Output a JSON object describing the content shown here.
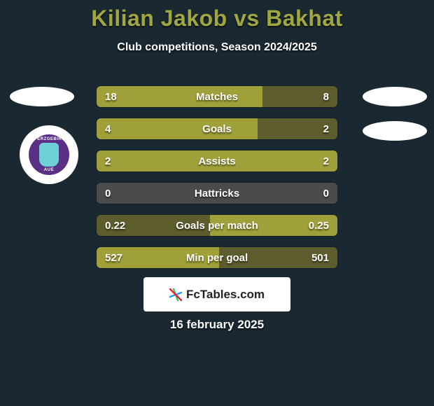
{
  "title": {
    "player1": "Kilian Jakob",
    "vs": "vs",
    "player2": "Bakhat",
    "color": "#a0a741"
  },
  "subtitle": "Club competitions, Season 2024/2025",
  "badge": {
    "text_top": "FC ERZGEBIRGE",
    "text_bottom": "AUE"
  },
  "colors": {
    "bar_primary": "#a0a03a",
    "bar_alt": "#5c5c2d",
    "bar_neutral": "#4b4b4b",
    "background": "#1a2831",
    "text": "#ffffff"
  },
  "bars": [
    {
      "label": "Matches",
      "left": "18",
      "right": "8",
      "left_pct": 69,
      "right_pct": 31,
      "left_color": "#a0a03a",
      "right_color": "#5c5c2d"
    },
    {
      "label": "Goals",
      "left": "4",
      "right": "2",
      "left_pct": 67,
      "right_pct": 33,
      "left_color": "#a0a03a",
      "right_color": "#5c5c2d"
    },
    {
      "label": "Assists",
      "left": "2",
      "right": "2",
      "left_pct": 50,
      "right_pct": 50,
      "left_color": "#a0a03a",
      "right_color": "#a0a03a"
    },
    {
      "label": "Hattricks",
      "left": "0",
      "right": "0",
      "left_pct": 50,
      "right_pct": 50,
      "left_color": "#4b4b4b",
      "right_color": "#4b4b4b"
    },
    {
      "label": "Goals per match",
      "left": "0.22",
      "right": "0.25",
      "left_pct": 47,
      "right_pct": 53,
      "left_color": "#5c5c2d",
      "right_color": "#a0a03a"
    },
    {
      "label": "Min per goal",
      "left": "527",
      "right": "501",
      "left_pct": 51,
      "right_pct": 49,
      "left_color": "#a0a03a",
      "right_color": "#5c5c2d"
    }
  ],
  "attribution": "FcTables.com",
  "date": "16 february 2025"
}
